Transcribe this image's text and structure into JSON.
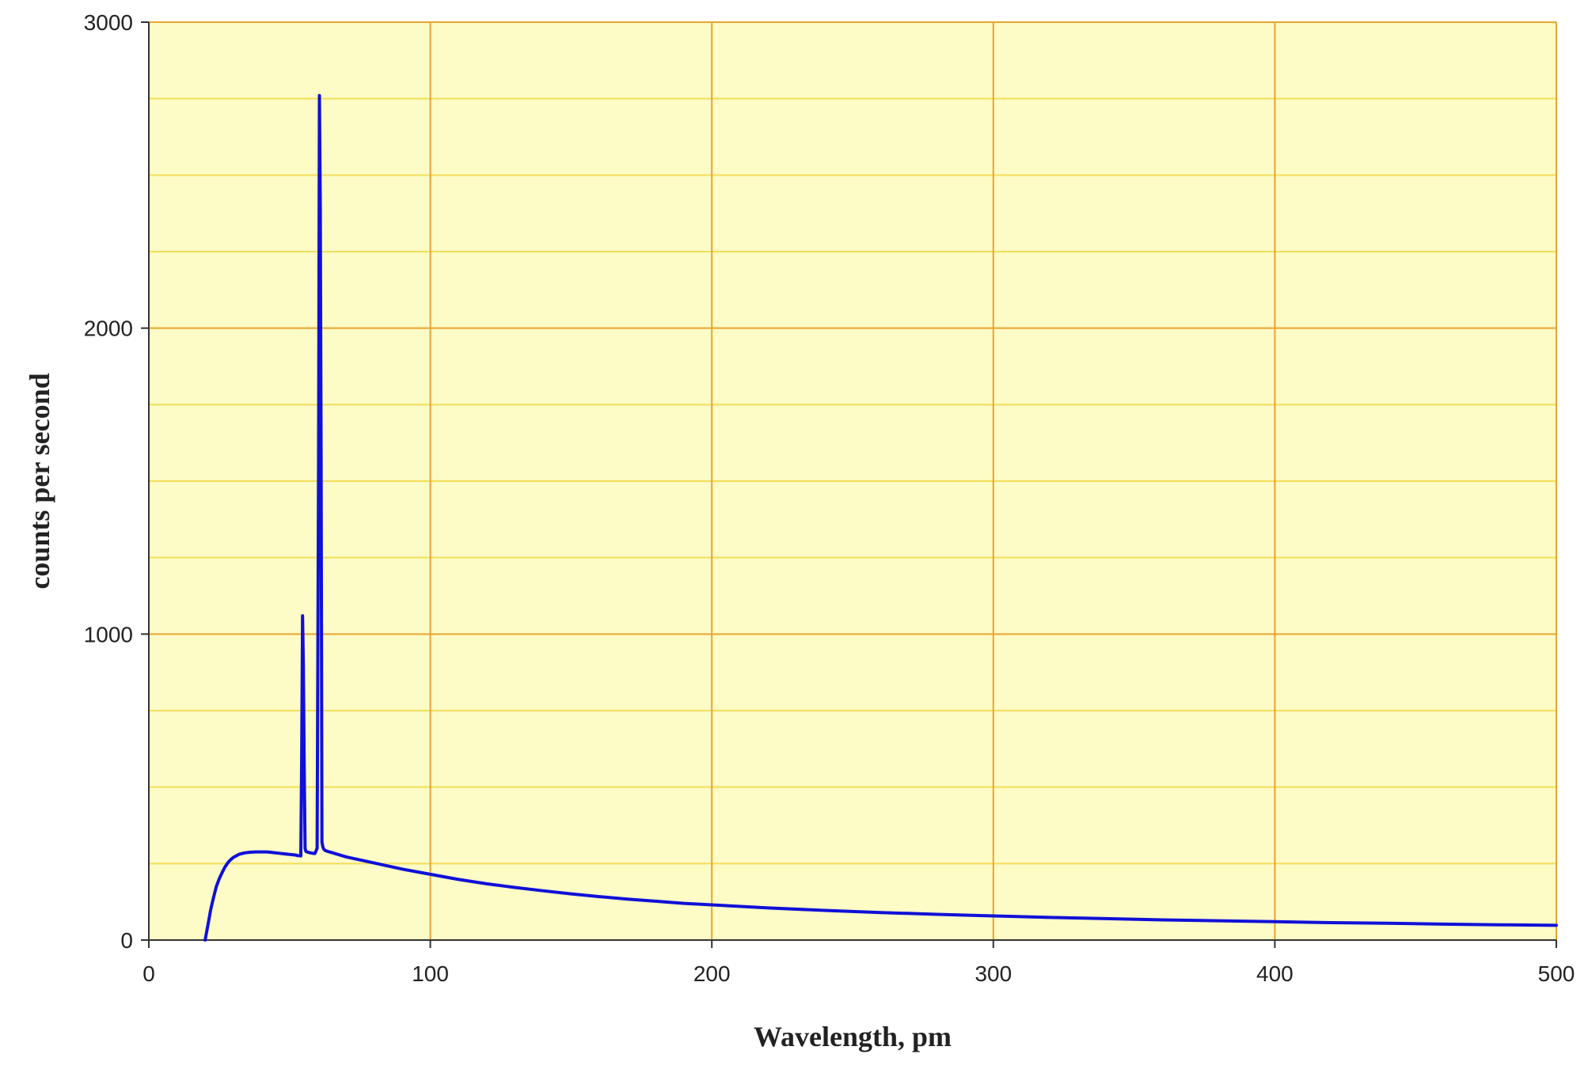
{
  "chart_data": {
    "type": "line",
    "title": "",
    "xlabel": "Wavelength, pm",
    "ylabel": "counts per second",
    "xlim": [
      0,
      500
    ],
    "ylim": [
      0,
      3000
    ],
    "x_ticks": [
      0,
      100,
      200,
      300,
      400,
      500
    ],
    "x_tick_labels": [
      "0",
      "100",
      "200",
      "300",
      "400",
      "500"
    ],
    "y_ticks": [
      0,
      1000,
      2000,
      3000
    ],
    "y_tick_labels": [
      "0",
      "1000",
      "2000",
      "3000"
    ],
    "y_minor_step": 250,
    "grid": true,
    "legend": "none",
    "colors": {
      "plot_background": "#fdfbc6",
      "major_grid": "#e8a430",
      "minor_grid": "#f2de5a",
      "axis": "#333333",
      "series": "#1010d8"
    },
    "series": [
      {
        "x": [
          20,
          21,
          22,
          23,
          24,
          25,
          26,
          27,
          28,
          29,
          30,
          32,
          34,
          36,
          38,
          40,
          42,
          44,
          46,
          48,
          50,
          52,
          53,
          54,
          54.3,
          54.6,
          54.9,
          55.2,
          55.5,
          55.8,
          56.2,
          57,
          58,
          59,
          59.8,
          60.3,
          60.6,
          60.9,
          61.2,
          61.5,
          61.8,
          62.1,
          62.6,
          63.5,
          65,
          70,
          75,
          80,
          90,
          100,
          110,
          120,
          130,
          140,
          150,
          160,
          170,
          180,
          190,
          200,
          220,
          240,
          260,
          280,
          300,
          320,
          340,
          360,
          380,
          400,
          420,
          440,
          460,
          480,
          500
        ],
        "y": [
          0,
          50,
          100,
          140,
          175,
          200,
          220,
          238,
          252,
          262,
          270,
          280,
          285,
          287,
          288,
          288,
          288,
          286,
          284,
          282,
          280,
          278,
          276,
          275,
          600,
          1060,
          900,
          560,
          300,
          290,
          288,
          286,
          284,
          283,
          300,
          1550,
          2760,
          2400,
          1600,
          320,
          305,
          298,
          293,
          290,
          286,
          272,
          262,
          252,
          232,
          215,
          198,
          184,
          172,
          161,
          151,
          142,
          134,
          127,
          120,
          115,
          105,
          97,
          90,
          84,
          79,
          74,
          70,
          66,
          63,
          60,
          57,
          55,
          52,
          50,
          48
        ]
      }
    ]
  }
}
